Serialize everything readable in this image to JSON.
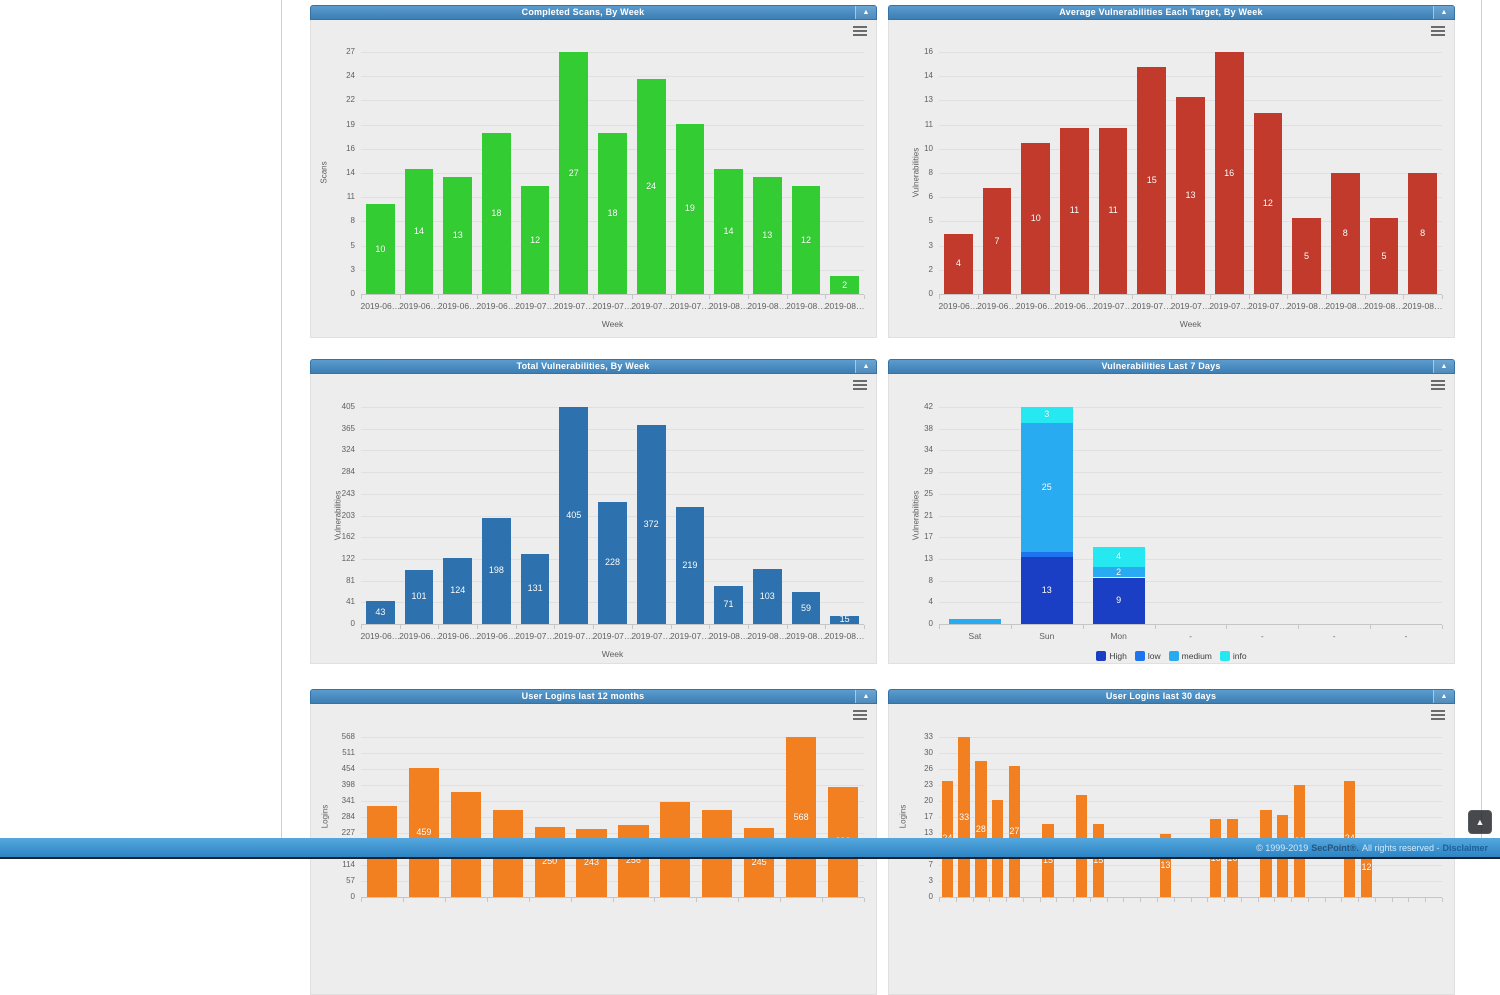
{
  "panels": [
    {
      "title": "Completed Scans, By Week",
      "collapse_icon": "▲",
      "chart_data": {
        "type": "bar",
        "title": "Completed Scans, By Week",
        "color": "#33cc33",
        "ylabel": "Scans",
        "xlabel": "Week",
        "categories": [
          "2019-06…",
          "2019-06…",
          "2019-06…",
          "2019-06…",
          "2019-07…",
          "2019-07…",
          "2019-07…",
          "2019-07…",
          "2019-07…",
          "2019-08…",
          "2019-08…",
          "2019-08…",
          "2019-08…"
        ],
        "values": [
          10,
          14,
          13,
          18,
          12,
          27,
          18,
          24,
          19,
          14,
          13,
          12,
          2
        ],
        "yticks": [
          0,
          3,
          5,
          8,
          11,
          14,
          16,
          19,
          22,
          24,
          27
        ],
        "ylim": [
          0,
          27
        ],
        "grid": true,
        "min_label": 1
      }
    },
    {
      "title": "Average Vulnerabilities Each Target, By Week",
      "collapse_icon": "▲",
      "chart_data": {
        "type": "bar",
        "title": "Average Vulnerabilities Each Target, By Week",
        "color": "#c23a2c",
        "ylabel": "Vulnerabilities",
        "xlabel": "Week",
        "categories": [
          "2019-06…",
          "2019-06…",
          "2019-06…",
          "2019-06…",
          "2019-07…",
          "2019-07…",
          "2019-07…",
          "2019-07…",
          "2019-07…",
          "2019-08…",
          "2019-08…",
          "2019-08…",
          "2019-08…"
        ],
        "values": [
          4,
          7,
          10,
          11,
          11,
          15,
          13,
          16,
          12,
          5,
          8,
          5,
          8
        ],
        "yticks": [
          0,
          2,
          3,
          5,
          6,
          8,
          10,
          11,
          13,
          14,
          16
        ],
        "ylim": [
          0,
          16
        ],
        "grid": true,
        "min_label": 1
      }
    },
    {
      "title": "Total Vulnerabilities, By Week",
      "collapse_icon": "▲",
      "chart_data": {
        "type": "bar",
        "title": "Total Vulnerabilities, By Week",
        "color": "#2d72ae",
        "ylabel": "Vulnerabilities",
        "xlabel": "Week",
        "categories": [
          "2019-06…",
          "2019-06…",
          "2019-06…",
          "2019-06…",
          "2019-07…",
          "2019-07…",
          "2019-07…",
          "2019-07…",
          "2019-07…",
          "2019-08…",
          "2019-08…",
          "2019-08…",
          "2019-08…"
        ],
        "values": [
          43,
          101,
          124,
          198,
          131,
          405,
          228,
          372,
          219,
          71,
          103,
          59,
          15
        ],
        "yticks": [
          0,
          41,
          81,
          122,
          162,
          203,
          243,
          284,
          324,
          365,
          405
        ],
        "ylim": [
          0,
          405
        ],
        "grid": true,
        "min_label": 1
      }
    },
    {
      "title": "Vulnerabilities Last 7 Days",
      "collapse_icon": "▲",
      "chart_data": {
        "type": "bar",
        "stacked": true,
        "title": "Vulnerabilities Last 7 Days",
        "ylabel": "Vulnerabilities",
        "xlabel": "",
        "categories": [
          "Sat",
          "Sun",
          "Mon",
          "-",
          "-",
          "-",
          "-"
        ],
        "series": [
          {
            "name": "High",
            "color": "#1b3fc4",
            "values": [
              0,
              13,
              9,
              0,
              0,
              0,
              0
            ]
          },
          {
            "name": "low",
            "color": "#1e73f0",
            "values": [
              0,
              1,
              0,
              0,
              0,
              0,
              0
            ]
          },
          {
            "name": "medium",
            "color": "#29abf2",
            "values": [
              1,
              25,
              2,
              0,
              0,
              0,
              0
            ]
          },
          {
            "name": "info",
            "color": "#25e8f0",
            "values": [
              0,
              3,
              4,
              0,
              0,
              0,
              0
            ]
          }
        ],
        "legend": [
          {
            "label": "High",
            "color": "#1b3fc4"
          },
          {
            "label": "low",
            "color": "#1e73f0"
          },
          {
            "label": "medium",
            "color": "#29abf2"
          },
          {
            "label": "info",
            "color": "#25e8f0"
          }
        ],
        "legend_position": "bottom",
        "yticks": [
          0,
          4,
          8,
          13,
          17,
          21,
          25,
          29,
          34,
          38,
          42
        ],
        "ylim": [
          0,
          42
        ],
        "grid": true,
        "min_label": 2
      }
    },
    {
      "title": "User Logins last 12 months",
      "collapse_icon": "▲",
      "chart_data": {
        "type": "bar",
        "title": "User Logins last 12 months",
        "color": "#f28021",
        "ylabel": "Logins",
        "xlabel": "",
        "categories": [
          "",
          "",
          "",
          "",
          "",
          "",
          "",
          "",
          "",
          "",
          "",
          ""
        ],
        "values": [
          323,
          459,
          372,
          309,
          250,
          243,
          256,
          336,
          309,
          245,
          568,
          392
        ],
        "yticks": [
          0,
          57,
          114,
          170,
          227,
          284,
          341,
          398,
          454,
          511,
          568
        ],
        "ylim": [
          0,
          568
        ],
        "grid": true,
        "min_label": 1,
        "note": "lower part of chart hidden below page fold"
      }
    },
    {
      "title": "User Logins last 30 days",
      "collapse_icon": "▲",
      "chart_data": {
        "type": "bar",
        "title": "User Logins last 30 days",
        "color": "#f28021",
        "ylabel": "Logins",
        "xlabel": "",
        "categories": [
          "",
          "",
          "",
          "",
          "",
          "",
          "",
          "",
          "",
          "",
          "",
          "",
          "",
          "",
          "",
          "",
          "",
          "",
          "",
          "",
          "",
          "",
          "",
          "",
          "",
          "",
          "",
          "",
          "",
          ""
        ],
        "values": [
          24,
          33,
          28,
          20,
          27,
          0,
          15,
          0,
          21,
          15,
          0,
          0,
          0,
          13,
          0,
          0,
          16,
          16,
          0,
          18,
          17,
          23,
          0,
          0,
          24,
          12,
          0,
          0,
          0,
          0
        ],
        "yticks": [
          0,
          3,
          7,
          10,
          13,
          17,
          20,
          23,
          26,
          30,
          33
        ],
        "ylim": [
          0,
          33
        ],
        "grid": true,
        "min_label": 1,
        "note": "lower part of chart hidden below page fold"
      }
    }
  ],
  "footer": {
    "copyright": "© 1999-2019",
    "brand": "SecPoint®.",
    "rights": "All rights reserved -",
    "disclaimer": "Disclaimer"
  },
  "scroll_top_icon": "▲"
}
